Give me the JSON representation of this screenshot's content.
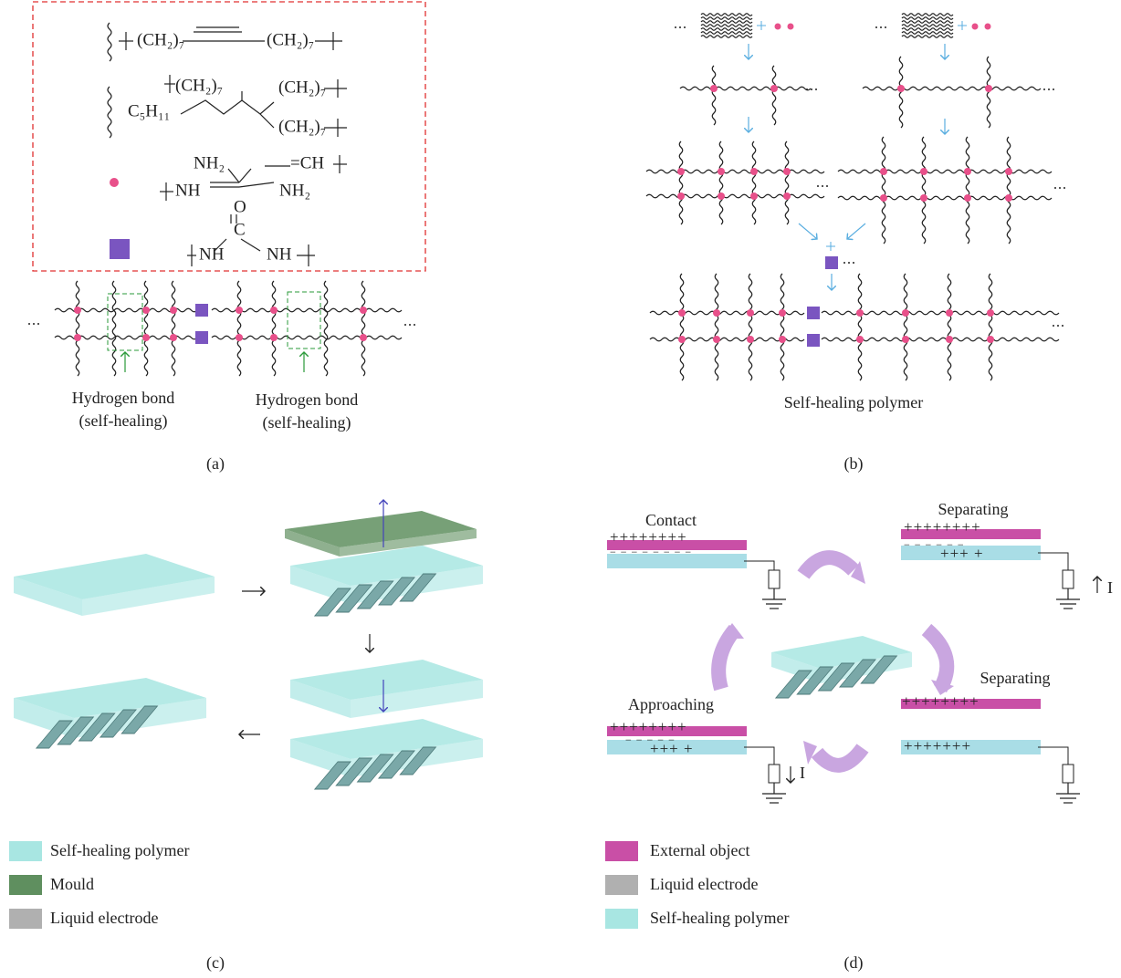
{
  "panel_a": {
    "formula_1": [
      "(CH₂)₇",
      "(CH₂)₇"
    ],
    "formula_2": [
      "C₅H₁₁",
      "(CH₂)₇",
      "(CH₂)₇",
      "(CH₂)₇"
    ],
    "formula_3": [
      "NH₂",
      "NH",
      "=CH",
      "NH₂"
    ],
    "formula_4": [
      "O",
      "C",
      "NH",
      "NH"
    ],
    "annotations": [
      {
        "line1": "Hydrogen bond",
        "line2": "(self-healing)"
      },
      {
        "line1": "Hydrogen bond",
        "line2": "(self-healing)"
      }
    ],
    "caption": "(a)"
  },
  "panel_b": {
    "label": "Self-healing polymer",
    "caption": "(b)"
  },
  "panel_c": {
    "legend": [
      "Self-healing polymer",
      "Mould",
      "Liquid electrode"
    ],
    "caption": "(c)"
  },
  "panel_d": {
    "states": [
      "Contact",
      "Separating",
      "Separating",
      "Approaching"
    ],
    "charges": [
      "++++++++",
      "− − − − − − − −",
      "++++++++",
      "− − − − − −",
      "+++ +",
      "++++++++",
      "+++++++",
      "++++++++",
      "− − − − −",
      "+++ +"
    ],
    "current_labels": [
      "I",
      "I"
    ],
    "legend": [
      "External object",
      "Liquid electrode",
      "Self-healing polymer"
    ],
    "caption": "(d)"
  }
}
